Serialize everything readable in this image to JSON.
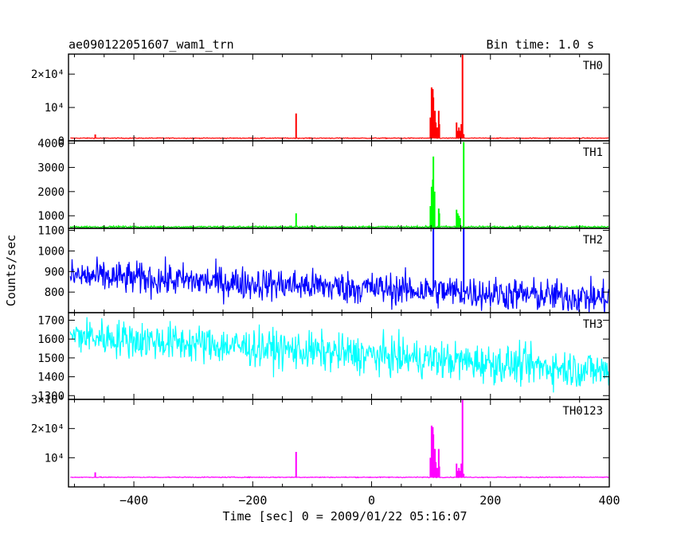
{
  "header": {
    "title": "ae090122051607_wam1_trn",
    "bin_time": "Bin time: 1.0 s"
  },
  "xaxis": {
    "label": "Time [sec] 0 = 2009/01/22 05:16:07",
    "range": [
      -510,
      400
    ],
    "ticks": [
      -400,
      -200,
      0,
      200,
      400
    ],
    "tick_labels": [
      "−400",
      "−200",
      "0",
      "200",
      "400"
    ]
  },
  "ylabel": "Counts/sec",
  "chart_data": [
    {
      "type": "line",
      "name": "TH0",
      "color": "#ff0000",
      "ylim": [
        0,
        26000
      ],
      "yticks": [
        0,
        10000,
        20000
      ],
      "ytick_labels": [
        "0",
        "10⁴",
        "2×10⁴"
      ],
      "baseline": 800,
      "noise": 120,
      "x": [
        -465,
        -127,
        99,
        101,
        103,
        104,
        106,
        108,
        110,
        113,
        114,
        143,
        145,
        147,
        149,
        151,
        153,
        155
      ],
      "values": [
        1900,
        8200,
        7000,
        16000,
        15500,
        13000,
        9000,
        5500,
        4000,
        9000,
        5000,
        5500,
        3000,
        4000,
        3000,
        5000,
        26000,
        2000
      ],
      "widths": [
        2,
        2,
        2,
        2,
        2,
        2,
        3,
        2,
        3,
        2,
        2,
        2,
        2,
        2,
        2,
        2,
        2,
        2
      ]
    },
    {
      "type": "line",
      "name": "TH1",
      "color": "#00ff00",
      "ylim": [
        480,
        4100
      ],
      "yticks": [
        1000,
        2000,
        3000,
        4000
      ],
      "ytick_labels": [
        "1000",
        "2000",
        "3000",
        "4000"
      ],
      "baseline": 540,
      "noise": 40,
      "x": [
        -127,
        99,
        101,
        103,
        104,
        106,
        113,
        114,
        143,
        145,
        147,
        149,
        155
      ],
      "values": [
        1100,
        1400,
        2200,
        2500,
        3450,
        2000,
        1300,
        1100,
        1250,
        1100,
        1000,
        900,
        4050
      ],
      "widths": [
        2,
        2,
        2,
        2,
        2,
        2,
        2,
        2,
        2,
        2,
        2,
        2,
        2
      ]
    },
    {
      "type": "line",
      "name": "TH2",
      "color": "#0000ff",
      "ylim": [
        700,
        1110
      ],
      "yticks": [
        800,
        900,
        1000,
        1100
      ],
      "ytick_labels": [
        "800",
        "900",
        "1000",
        "1100"
      ],
      "baseline_start": 880,
      "baseline_end": 770,
      "noise": 80,
      "x": [
        104,
        155
      ],
      "values": [
        1110,
        1110
      ],
      "widths": [
        2,
        2
      ]
    },
    {
      "type": "line",
      "name": "TH3",
      "color": "#00ffff",
      "ylim": [
        1280,
        1740
      ],
      "yticks": [
        1300,
        1400,
        1500,
        1600,
        1700
      ],
      "ytick_labels": [
        "1300",
        "1400",
        "1500",
        "1600",
        "1700"
      ],
      "baseline_start": 1620,
      "baseline_end": 1430,
      "noise": 100,
      "x": [],
      "values": [],
      "widths": []
    },
    {
      "type": "line",
      "name": "TH0123",
      "color": "#ff00ff",
      "ylim": [
        0,
        30000
      ],
      "yticks": [
        10000,
        20000,
        30000
      ],
      "ytick_labels": [
        "10⁴",
        "2×10⁴",
        "3×10⁴"
      ],
      "baseline": 3300,
      "noise": 150,
      "x": [
        -465,
        -127,
        99,
        101,
        103,
        104,
        106,
        108,
        110,
        113,
        114,
        143,
        145,
        147,
        149,
        151,
        153,
        155
      ],
      "values": [
        5000,
        12000,
        10000,
        21000,
        20500,
        18000,
        13000,
        8500,
        6500,
        13000,
        7000,
        8000,
        5500,
        6500,
        5500,
        8000,
        30000,
        4500
      ],
      "widths": [
        2,
        2,
        2,
        2,
        2,
        2,
        3,
        2,
        3,
        2,
        2,
        2,
        2,
        2,
        2,
        2,
        2,
        2
      ]
    }
  ]
}
